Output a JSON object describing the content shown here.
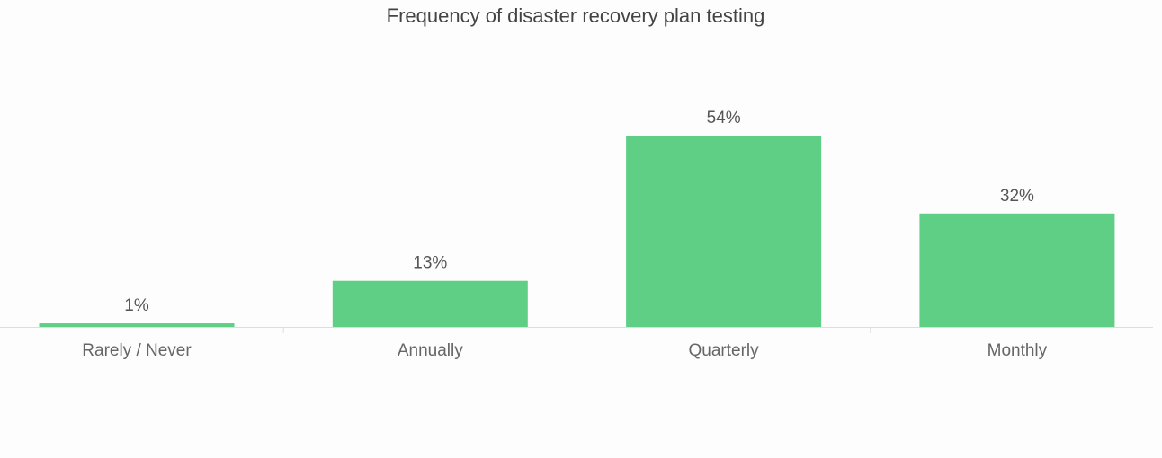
{
  "chart_data": {
    "type": "bar",
    "title": "Frequency of disaster recovery plan testing",
    "categories": [
      "Rarely / Never",
      "Annually",
      "Quarterly",
      "Monthly"
    ],
    "values": [
      1,
      13,
      54,
      32
    ],
    "value_labels": [
      "1%",
      "13%",
      "54%",
      "32%"
    ],
    "color": "#5ecf85"
  }
}
